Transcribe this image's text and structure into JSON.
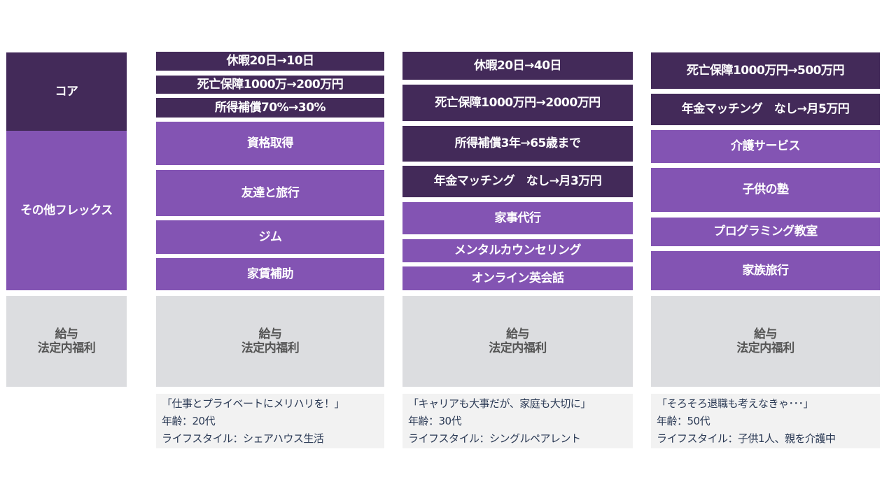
{
  "labels": {
    "core": "コア",
    "flex": "その他フレックス",
    "base_line1": "給与",
    "base_line2": "法定内福利"
  },
  "colors": {
    "core": "#432a59",
    "flex": "#8354b3",
    "base": "#dcdde0",
    "note": "#f2f2f2"
  },
  "personas": [
    {
      "core": [
        "休暇20日→10日",
        "死亡保障1000万→200万円",
        "所得補償70%→30%"
      ],
      "flex": [
        "資格取得",
        "友達と旅行",
        "ジム",
        "家賃補助"
      ],
      "quote": "「仕事とプライベートにメリハリを！」",
      "age": "年齢：20代",
      "lifestyle": "ライフスタイル：シェアハウス生活"
    },
    {
      "core": [
        "休暇20日→40日",
        "死亡保障1000万円→2000万円",
        "所得補償3年→65歳まで",
        "年金マッチング　なし→月3万円"
      ],
      "flex": [
        "家事代行",
        "メンタルカウンセリング",
        "オンライン英会話"
      ],
      "quote": "「キャリアも大事だが、家庭も大切に」",
      "age": "年齢：30代",
      "lifestyle": "ライフスタイル：シングルペアレント"
    },
    {
      "core": [
        "死亡保障1000万円→500万円",
        "年金マッチング　なし→月5万円"
      ],
      "flex": [
        "介護サービス",
        "子供の塾",
        "プログラミング教室",
        "家族旅行"
      ],
      "quote": "「そろそろ退職も考えなきゃ･･･」",
      "age": "年齢：50代",
      "lifestyle": "ライフスタイル：子供1人、親を介護中"
    }
  ]
}
